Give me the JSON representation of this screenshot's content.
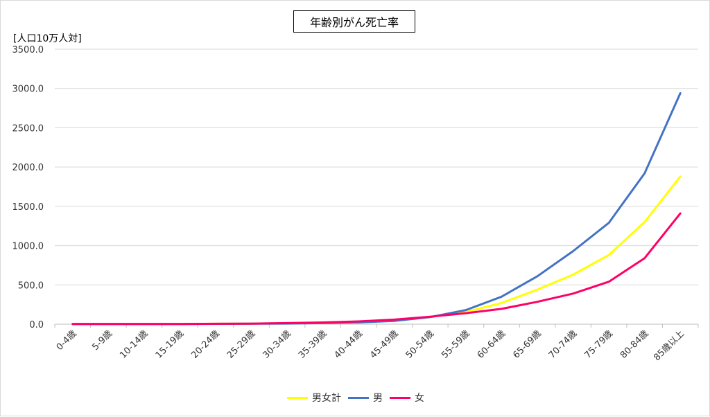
{
  "chart_data": {
    "type": "line",
    "title": "年齢別がん死亡率",
    "ylabel": "[人口10万人対]",
    "xlabel": "",
    "ylim": [
      0,
      3500
    ],
    "yticks": [
      "0.0",
      "500.0",
      "1000.0",
      "1500.0",
      "2000.0",
      "2500.0",
      "3000.0",
      "3500.0"
    ],
    "ytick_values": [
      0,
      500,
      1000,
      1500,
      2000,
      2500,
      3000,
      3500
    ],
    "grid": true,
    "legend_position": "bottom",
    "categories": [
      "0-4歳",
      "5-9歳",
      "10-14歳",
      "15-19歳",
      "20-24歳",
      "25-29歳",
      "30-34歳",
      "35-39歳",
      "40-44歳",
      "45-49歳",
      "50-54歳",
      "55-59歳",
      "60-64歳",
      "65-69歳",
      "70-74歳",
      "75-79歳",
      "80-84歳",
      "85歳以上"
    ],
    "series": [
      {
        "name": "男女計",
        "color": "#ffff00",
        "values": [
          2,
          2,
          2,
          3,
          5,
          7,
          11,
          18,
          30,
          50,
          90,
          155,
          270,
          440,
          630,
          880,
          1300,
          1880
        ]
      },
      {
        "name": "男",
        "color": "#4472c4",
        "values": [
          2,
          2,
          2,
          3,
          4,
          6,
          8,
          14,
          22,
          42,
          90,
          180,
          350,
          610,
          930,
          1290,
          1920,
          2940
        ]
      },
      {
        "name": "女",
        "color": "#ff0066",
        "values": [
          2,
          2,
          2,
          3,
          5,
          7,
          14,
          22,
          35,
          58,
          95,
          140,
          195,
          285,
          390,
          540,
          840,
          1410
        ]
      }
    ]
  }
}
